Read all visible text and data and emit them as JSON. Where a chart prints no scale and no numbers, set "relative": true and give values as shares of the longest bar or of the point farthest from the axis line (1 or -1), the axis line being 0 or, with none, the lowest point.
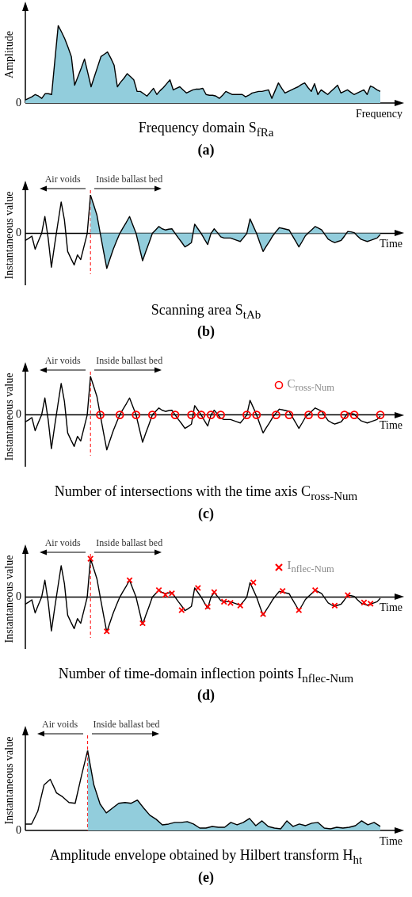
{
  "chart_data": [
    {
      "type": "area",
      "title": "Frequency domain S$_{fRa}$",
      "subtitle": "(a)",
      "xlabel": "Frequency",
      "ylabel": "Amplitude",
      "relative": true,
      "color": "#92cddc",
      "categories": [
        null,
        null,
        null,
        null,
        null,
        null,
        null,
        null,
        null,
        null,
        null,
        null,
        null,
        null,
        null,
        null,
        null,
        null,
        null,
        null,
        null,
        null,
        null,
        null,
        null,
        null,
        null,
        null,
        null,
        null,
        null,
        null,
        null,
        null,
        null,
        null,
        null,
        null,
        null,
        null,
        null,
        null,
        null,
        null,
        null,
        null,
        null,
        null,
        null,
        null,
        null,
        null,
        null,
        null,
        null,
        null,
        null,
        null,
        null,
        null,
        null,
        null,
        null,
        null,
        null,
        null,
        null,
        null,
        null,
        null,
        null,
        null,
        null,
        null,
        null,
        null,
        null,
        null,
        null,
        null,
        null,
        null,
        null,
        null,
        null,
        null,
        null,
        null,
        null,
        null,
        null,
        null,
        null,
        null,
        null,
        null,
        null,
        null,
        null,
        null,
        null,
        null,
        null,
        null,
        null,
        null,
        null,
        null,
        null
      ],
      "values": [
        0.04,
        0.06,
        0.08,
        0.11,
        0.09,
        0.06,
        0.12,
        0.12,
        0.11,
        0.56,
        1,
        0.92,
        0.83,
        0.72,
        0.6,
        0.23,
        0.34,
        0.45,
        0.57,
        0.39,
        0.21,
        0.34,
        0.47,
        0.6,
        0.63,
        0.66,
        0.58,
        0.49,
        0.21,
        0.27,
        0.32,
        0.38,
        0.34,
        0.3,
        0.15,
        0.15,
        0.12,
        0.09,
        0.14,
        0.19,
        0.11,
        0.16,
        0.2,
        0.25,
        0.3,
        0.17,
        0.19,
        0.21,
        0.17,
        0.13,
        0.15,
        0.17,
        0.18,
        0.18,
        0.19,
        0.11,
        0.1,
        0.1,
        0.09,
        0.06,
        0.1,
        0.15,
        0.13,
        0.11,
        0.11,
        0.11,
        0.11,
        0.08,
        0.1,
        0.13,
        0.14,
        0.15,
        0.15,
        0.16,
        0.17,
        0.06,
        0.16,
        0.26,
        0.19,
        0.13,
        0.15,
        0.17,
        0.19,
        0.21,
        0.24,
        0.26,
        0.2,
        0.15,
        0.25,
        0.11,
        0.17,
        0.14,
        0.11,
        0.15,
        0.19,
        0.23,
        0.13,
        0.15,
        0.17,
        0.14,
        0.11,
        0.13,
        0.15,
        0.17,
        0.11,
        0.22,
        0.2,
        0.17,
        0.15
      ],
      "annotations": [
        "0"
      ]
    },
    {
      "type": "line",
      "title": "Scanning area S$_{tAb}$",
      "subtitle": "(b)",
      "xlabel": "Time",
      "ylabel": "Instantaneous value",
      "relative": true,
      "categories": [
        null,
        null,
        null,
        null,
        null,
        null,
        null,
        null,
        null,
        null,
        null,
        null,
        null,
        null,
        null,
        null,
        null,
        null,
        null,
        null,
        null,
        null,
        null,
        null,
        null,
        null,
        null,
        null,
        null,
        null,
        null,
        null,
        null,
        null,
        null,
        null,
        null,
        null,
        null,
        null,
        null,
        null,
        null,
        null,
        null,
        null,
        null,
        null,
        null,
        null,
        null,
        null,
        null,
        null,
        null,
        null,
        null,
        null,
        null,
        null,
        null,
        null,
        null,
        null,
        null,
        null,
        null,
        null,
        null,
        null,
        null,
        null,
        null,
        null,
        null,
        null,
        null,
        null,
        null,
        null,
        null,
        null,
        null,
        null,
        null,
        null,
        null,
        null,
        null,
        null,
        null,
        null,
        null,
        null,
        null,
        null,
        null,
        null,
        null,
        null,
        null,
        null,
        null,
        null,
        null,
        null,
        null,
        null,
        null,
        null
      ],
      "series": [
        {
          "color": "#000000",
          "values": [
            -0.18,
            -0.13,
            -0.07,
            -0.41,
            -0.2,
            0,
            0.44,
            -0.12,
            -0.88,
            -0.29,
            0.27,
            0.82,
            0.35,
            -0.47,
            -0.65,
            -0.82,
            -0.56,
            -0.68,
            -0.34,
            0,
            1,
            null,
            null,
            null,
            null,
            null,
            null,
            null,
            null,
            null,
            null,
            null,
            null,
            null,
            null,
            null,
            null,
            null,
            null,
            null,
            null,
            null,
            null,
            null,
            null,
            null,
            null,
            null,
            null,
            null,
            null,
            null,
            null,
            null,
            null,
            null,
            null,
            null,
            null,
            null,
            null,
            null,
            null,
            null,
            null,
            null,
            null,
            null,
            null,
            null,
            null,
            null,
            null,
            null,
            null,
            null,
            null,
            null,
            null,
            null,
            null,
            null,
            null,
            null,
            null,
            null,
            null,
            null,
            null,
            null,
            null,
            null,
            null,
            null,
            null,
            null,
            null,
            null,
            null,
            null,
            null,
            null,
            null,
            null,
            null,
            null,
            null,
            null,
            null,
            null
          ]
        },
        {
          "type": "area",
          "color": "#92cddc",
          "values": [
            null,
            null,
            null,
            null,
            null,
            null,
            null,
            null,
            null,
            null,
            null,
            null,
            null,
            null,
            null,
            null,
            null,
            null,
            null,
            null,
            1,
            0.74,
            0.47,
            0,
            -0.46,
            -0.91,
            -0.66,
            -0.41,
            -0.2,
            0,
            0.15,
            0.29,
            0.44,
            0.22,
            0,
            -0.36,
            -0.71,
            -0.47,
            -0.24,
            0,
            0.09,
            0.18,
            0.12,
            0.09,
            0.11,
            0.12,
            0,
            -0.12,
            -0.23,
            -0.35,
            -0.3,
            -0.24,
            0.24,
            0.12,
            0,
            -0.15,
            -0.29,
            0,
            0.12,
            0.02,
            -0.09,
            -0.12,
            -0.12,
            -0.12,
            -0.15,
            -0.18,
            -0.21,
            -0.11,
            0,
            0.38,
            0.19,
            0,
            -0.24,
            -0.47,
            -0.33,
            -0.2,
            -0.06,
            0.05,
            0.15,
            0.13,
            0.11,
            0.09,
            -0.06,
            -0.2,
            -0.35,
            -0.21,
            -0.06,
            0.02,
            0.1,
            0.18,
            0.14,
            0.09,
            -0.03,
            -0.15,
            -0.2,
            -0.24,
            -0.21,
            -0.18,
            -0.07,
            0.05,
            0.04,
            0.02,
            -0.07,
            -0.15,
            -0.18,
            -0.21,
            -0.18,
            -0.15,
            -0.12,
            -0.03
          ]
        }
      ],
      "annotations": [
        "0",
        "Air voids",
        "Inside ballast bed"
      ]
    },
    {
      "type": "line",
      "title": "Number of intersections with the time axis C$_{ross-Num}$",
      "subtitle": "(c)",
      "xlabel": "Time",
      "ylabel": "Instantaneous value",
      "relative": true,
      "legend": "top right",
      "categories": [
        null,
        null,
        null,
        null,
        null,
        null,
        null,
        null,
        null,
        null,
        null,
        null,
        null,
        null,
        null,
        null,
        null,
        null,
        null,
        null,
        null,
        null,
        null,
        null,
        null,
        null,
        null,
        null,
        null,
        null,
        null,
        null,
        null,
        null,
        null,
        null,
        null,
        null,
        null,
        null,
        null,
        null,
        null,
        null,
        null,
        null,
        null,
        null,
        null,
        null,
        null,
        null,
        null,
        null,
        null,
        null,
        null,
        null,
        null,
        null,
        null,
        null,
        null,
        null,
        null,
        null,
        null,
        null,
        null,
        null,
        null,
        null,
        null,
        null,
        null,
        null,
        null,
        null,
        null,
        null,
        null,
        null,
        null,
        null,
        null,
        null,
        null,
        null,
        null,
        null,
        null,
        null,
        null,
        null,
        null,
        null,
        null,
        null,
        null,
        null,
        null,
        null,
        null,
        null,
        null,
        null,
        null,
        null,
        null,
        null
      ],
      "series": [
        {
          "color": "#000000",
          "values": [
            -0.18,
            -0.13,
            -0.07,
            -0.41,
            -0.2,
            0,
            0.44,
            -0.12,
            -0.88,
            -0.29,
            0.27,
            0.82,
            0.35,
            -0.47,
            -0.65,
            -0.82,
            -0.56,
            -0.68,
            -0.34,
            0,
            1,
            0.74,
            0.47,
            0,
            -0.46,
            -0.91,
            -0.66,
            -0.41,
            -0.2,
            0,
            0.15,
            0.29,
            0.44,
            0.22,
            0,
            -0.36,
            -0.71,
            -0.47,
            -0.24,
            0,
            0.09,
            0.18,
            0.12,
            0.09,
            0.11,
            0.12,
            0,
            -0.12,
            -0.23,
            -0.35,
            -0.3,
            -0.24,
            0.24,
            0.12,
            0,
            -0.15,
            -0.29,
            0,
            0.12,
            0.02,
            -0.09,
            -0.12,
            -0.12,
            -0.12,
            -0.15,
            -0.18,
            -0.21,
            -0.11,
            0,
            0.38,
            0.19,
            0,
            -0.24,
            -0.47,
            -0.33,
            -0.2,
            -0.06,
            0.05,
            0.15,
            0.13,
            0.11,
            0.09,
            -0.06,
            -0.2,
            -0.35,
            -0.21,
            -0.06,
            0.02,
            0.1,
            0.18,
            0.14,
            0.09,
            -0.03,
            -0.15,
            -0.2,
            -0.24,
            -0.21,
            -0.18,
            -0.07,
            0.05,
            0.04,
            0.02,
            -0.07,
            -0.15,
            -0.18,
            -0.21,
            -0.18,
            -0.15,
            -0.12,
            -0.03
          ]
        },
        {
          "type": "scatter",
          "name": "C$_{ross-Num}$",
          "color": "#ff0000",
          "marker": "circle",
          "values": [
            null,
            null,
            null,
            null,
            null,
            null,
            null,
            null,
            null,
            null,
            null,
            null,
            null,
            null,
            null,
            null,
            null,
            null,
            null,
            null,
            null,
            null,
            null,
            0,
            null,
            null,
            null,
            null,
            null,
            0,
            null,
            null,
            null,
            null,
            0,
            null,
            null,
            null,
            null,
            0,
            null,
            null,
            null,
            null,
            null,
            null,
            0,
            null,
            null,
            null,
            null,
            0,
            null,
            null,
            0,
            null,
            null,
            0,
            null,
            null,
            0,
            null,
            null,
            null,
            null,
            null,
            null,
            null,
            0,
            null,
            null,
            0,
            null,
            null,
            null,
            null,
            null,
            0,
            null,
            null,
            null,
            0,
            null,
            null,
            null,
            null,
            null,
            0,
            null,
            null,
            null,
            0,
            null,
            null,
            null,
            null,
            null,
            null,
            0,
            null,
            null,
            0,
            null,
            null,
            null,
            null,
            null,
            null,
            null,
            0
          ]
        }
      ],
      "annotations": [
        "0",
        "Air voids",
        "Inside ballast bed"
      ]
    },
    {
      "type": "line",
      "title": "Number of time-domain inflection points I$_{nflec-Num}$",
      "subtitle": "(d)",
      "xlabel": "Time",
      "ylabel": "Instantaneous value",
      "relative": true,
      "legend": "top right",
      "categories": [
        null,
        null,
        null,
        null,
        null,
        null,
        null,
        null,
        null,
        null,
        null,
        null,
        null,
        null,
        null,
        null,
        null,
        null,
        null,
        null,
        null,
        null,
        null,
        null,
        null,
        null,
        null,
        null,
        null,
        null,
        null,
        null,
        null,
        null,
        null,
        null,
        null,
        null,
        null,
        null,
        null,
        null,
        null,
        null,
        null,
        null,
        null,
        null,
        null,
        null,
        null,
        null,
        null,
        null,
        null,
        null,
        null,
        null,
        null,
        null,
        null,
        null,
        null,
        null,
        null,
        null,
        null,
        null,
        null,
        null,
        null,
        null,
        null,
        null,
        null,
        null,
        null,
        null,
        null,
        null,
        null,
        null,
        null,
        null,
        null,
        null,
        null,
        null,
        null,
        null,
        null,
        null,
        null,
        null,
        null,
        null,
        null,
        null,
        null,
        null,
        null,
        null,
        null,
        null,
        null,
        null,
        null,
        null,
        null,
        null
      ],
      "series": [
        {
          "color": "#000000",
          "values": [
            -0.18,
            -0.13,
            -0.07,
            -0.41,
            -0.2,
            0,
            0.44,
            -0.12,
            -0.88,
            -0.29,
            0.27,
            0.82,
            0.35,
            -0.47,
            -0.65,
            -0.82,
            -0.56,
            -0.68,
            -0.34,
            0,
            1,
            0.74,
            0.47,
            0,
            -0.46,
            -0.91,
            -0.66,
            -0.41,
            -0.2,
            0,
            0.15,
            0.29,
            0.44,
            0.22,
            0,
            -0.36,
            -0.71,
            -0.47,
            -0.24,
            0,
            0.09,
            0.18,
            0.12,
            0.09,
            0.11,
            0.12,
            0,
            -0.12,
            -0.23,
            -0.35,
            -0.3,
            -0.24,
            0.24,
            0.12,
            0,
            -0.15,
            -0.29,
            0,
            0.12,
            0.02,
            -0.09,
            -0.12,
            -0.12,
            -0.12,
            -0.15,
            -0.18,
            -0.21,
            -0.11,
            0,
            0.38,
            0.19,
            0,
            -0.24,
            -0.47,
            -0.33,
            -0.2,
            -0.06,
            0.05,
            0.15,
            0.13,
            0.11,
            0.09,
            -0.06,
            -0.2,
            -0.35,
            -0.21,
            -0.06,
            0.02,
            0.1,
            0.18,
            0.14,
            0.09,
            -0.03,
            -0.15,
            -0.2,
            -0.24,
            -0.21,
            -0.18,
            -0.07,
            0.05,
            0.04,
            0.02,
            -0.07,
            -0.15,
            -0.18,
            -0.21,
            -0.18,
            -0.15,
            -0.12,
            -0.03
          ]
        },
        {
          "type": "scatter",
          "name": "I$_{nflec-Num}$",
          "color": "#ff0000",
          "marker": "cross",
          "values": [
            null,
            null,
            null,
            null,
            null,
            null,
            null,
            null,
            null,
            null,
            null,
            null,
            null,
            null,
            null,
            null,
            null,
            null,
            null,
            null,
            1,
            null,
            null,
            null,
            null,
            -0.89,
            null,
            null,
            null,
            null,
            null,
            null,
            0.44,
            null,
            null,
            null,
            -0.68,
            null,
            null,
            null,
            null,
            0.18,
            null,
            0.06,
            null,
            0.1,
            null,
            null,
            -0.34,
            null,
            null,
            null,
            null,
            0.24,
            null,
            null,
            -0.25,
            null,
            0.13,
            null,
            null,
            -0.12,
            null,
            -0.15,
            null,
            null,
            -0.22,
            null,
            null,
            null,
            0.38,
            null,
            null,
            -0.44,
            null,
            null,
            null,
            null,
            null,
            0.16,
            null,
            null,
            null,
            null,
            -0.34,
            null,
            null,
            null,
            null,
            0.18,
            null,
            null,
            null,
            null,
            null,
            -0.22,
            null,
            null,
            null,
            0.05,
            null,
            null,
            null,
            null,
            -0.14,
            null,
            -0.17,
            null,
            null,
            null
          ]
        }
      ],
      "annotations": [
        "0",
        "Air voids",
        "Inside ballast bed"
      ]
    },
    {
      "type": "line",
      "title": "Amplitude envelope obtained by Hilbert transform H$_{ht}$",
      "subtitle": "(e)",
      "xlabel": "Time",
      "ylabel": "Instantaneous value",
      "relative": true,
      "categories": [
        null,
        null,
        null,
        null,
        null,
        null,
        null,
        null,
        null,
        null,
        null,
        null,
        null,
        null,
        null,
        null,
        null,
        null,
        null,
        null,
        null,
        null,
        null,
        null,
        null,
        null,
        null,
        null,
        null,
        null,
        null,
        null,
        null,
        null,
        null,
        null,
        null,
        null,
        null,
        null,
        null,
        null,
        null,
        null,
        null,
        null,
        null,
        null,
        null,
        null,
        null,
        null,
        null,
        null,
        null,
        null,
        null,
        null
      ],
      "series": [
        {
          "color": "#000000",
          "values": [
            0.08,
            0.08,
            0.24,
            0.57,
            0.64,
            0.47,
            0.42,
            0.35,
            0.34,
            0.68,
            1,
            null,
            null,
            null,
            null,
            null,
            null,
            null,
            null,
            null,
            null,
            null,
            null,
            null,
            null,
            null,
            null,
            null,
            null,
            null,
            null,
            null,
            null,
            null,
            null,
            null,
            null,
            null,
            null,
            null,
            null,
            null,
            null,
            null,
            null,
            null,
            null,
            null,
            null,
            null,
            null,
            null,
            null,
            null,
            null,
            null,
            null,
            null
          ]
        },
        {
          "type": "area",
          "color": "#92cddc",
          "values": [
            null,
            null,
            null,
            null,
            null,
            null,
            null,
            null,
            null,
            null,
            1,
            0.57,
            0.33,
            0.22,
            0.28,
            0.34,
            0.35,
            0.34,
            0.38,
            0.28,
            0.19,
            0.14,
            0.07,
            0.08,
            0.1,
            0.1,
            0.11,
            0.08,
            0.03,
            0.03,
            0.05,
            0.04,
            0.04,
            0.1,
            0.07,
            0.1,
            0.15,
            0.06,
            0.12,
            0.05,
            0.03,
            0.02,
            0.12,
            0.05,
            0.08,
            0.06,
            0.09,
            0.1,
            0.03,
            0.02,
            0.04,
            0.03,
            0.04,
            0.06,
            0.12,
            0.07,
            0.1,
            0.05
          ]
        }
      ],
      "annotations": [
        "0",
        "Air voids",
        "Inside ballast bed"
      ]
    }
  ]
}
